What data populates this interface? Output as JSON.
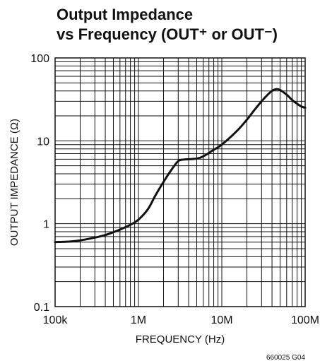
{
  "chart_data": {
    "type": "line",
    "title": [
      "Output Impedance",
      "vs Frequency (OUT⁺ or OUT⁻)"
    ],
    "xlabel": "FREQUENCY (Hz)",
    "ylabel": "OUTPUT IMPEDANCE (Ω)",
    "x_scale": "log",
    "y_scale": "log",
    "xlim": [
      100000,
      100000000
    ],
    "ylim": [
      0.1,
      100
    ],
    "x_tick_labels": [
      "100k",
      "1M",
      "10M",
      "100M"
    ],
    "y_tick_labels": [
      "0.1",
      "1",
      "10",
      "100"
    ],
    "grid": true,
    "series": [
      {
        "x": [
          100000,
          150000,
          200000,
          300000,
          400000,
          500000,
          600000,
          800000,
          1000000,
          1300000,
          1600000,
          2000000,
          2500000,
          3000000,
          3500000,
          4000000,
          5000000,
          6000000,
          8000000,
          10000000,
          15000000,
          20000000,
          25000000,
          30000000,
          35000000,
          40000000,
          45000000,
          50000000,
          60000000,
          70000000,
          80000000,
          90000000,
          100000000
        ],
        "y": [
          0.6,
          0.61,
          0.63,
          0.68,
          0.73,
          0.79,
          0.85,
          0.97,
          1.12,
          1.5,
          2.2,
          3.2,
          4.5,
          5.7,
          5.95,
          6.0,
          6.1,
          6.5,
          7.8,
          9.0,
          13.0,
          18.0,
          24.0,
          30.0,
          35.5,
          40.0,
          42.0,
          41.0,
          36.0,
          31.0,
          28.0,
          26.0,
          25.0
        ]
      }
    ]
  },
  "footer_code": "660025 G04"
}
